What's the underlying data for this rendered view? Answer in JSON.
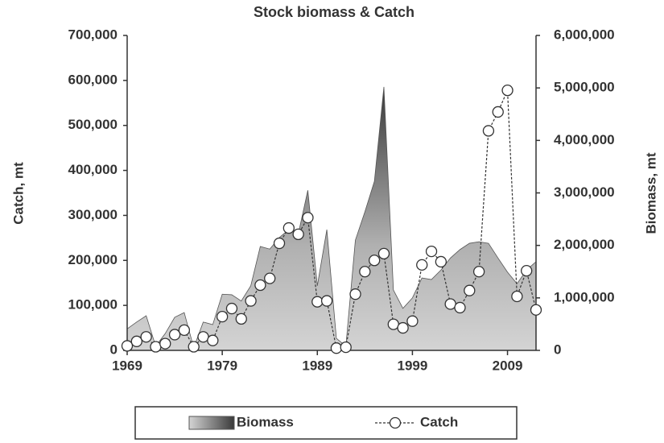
{
  "chart_data": {
    "type": "area_line",
    "title": "Stock biomass & Catch",
    "ylabel": "Catch, mt",
    "y2label": "Biomass, mt",
    "x": [
      1969,
      1970,
      1971,
      1972,
      1973,
      1974,
      1975,
      1976,
      1977,
      1978,
      1979,
      1980,
      1981,
      1982,
      1983,
      1984,
      1985,
      1986,
      1987,
      1988,
      1989,
      1990,
      1991,
      1992,
      1993,
      1994,
      1995,
      1996,
      1997,
      1998,
      1999,
      2000,
      2001,
      2002,
      2003,
      2004,
      2005,
      2006,
      2007,
      2008,
      2009,
      2010,
      2011,
      2012
    ],
    "series": [
      {
        "name": "Biomass",
        "color": "#8c8c8c",
        "axis": "y2",
        "values": [
          410000,
          540000,
          660000,
          80000,
          320000,
          630000,
          720000,
          50000,
          540000,
          490000,
          1070000,
          1060000,
          940000,
          1230000,
          1980000,
          1930000,
          2150000,
          2300000,
          2220000,
          3050000,
          1230000,
          2300000,
          230000,
          80000,
          2100000,
          2640000,
          3220000,
          5020000,
          1150000,
          800000,
          1000000,
          1380000,
          1350000,
          1530000,
          1760000,
          1920000,
          2040000,
          2070000,
          2040000,
          1760000,
          1490000,
          1270000,
          1530000,
          1690000
        ]
      },
      {
        "name": "Catch",
        "color": "#333333",
        "axis": "y",
        "values": [
          10000,
          20000,
          30000,
          8000,
          15000,
          35000,
          45000,
          8000,
          30000,
          22000,
          75000,
          93000,
          70000,
          110000,
          145000,
          160000,
          238000,
          272000,
          258000,
          295000,
          108000,
          110000,
          5000,
          7000,
          125000,
          175000,
          200000,
          215000,
          58000,
          50000,
          65000,
          190000,
          220000,
          197000,
          103000,
          95000,
          133000,
          175000,
          488000,
          530000,
          578000,
          120000,
          177000,
          90000
        ]
      }
    ],
    "xlim": [
      1969,
      2012
    ],
    "xticks": [
      1969,
      1979,
      1989,
      1999,
      2009
    ],
    "ylim": [
      0,
      700000
    ],
    "yticks": [
      0,
      {
        "value": 100000,
        "label": "100,000"
      },
      {
        "value": 200000,
        "label": "200,000"
      },
      {
        "value": 300000,
        "label": "300,000"
      },
      {
        "value": 400000,
        "label": "400,000"
      },
      {
        "value": 500000,
        "label": "500,000"
      },
      {
        "value": 600000,
        "label": "600,000"
      },
      {
        "value": 700000,
        "label": "700,000"
      }
    ],
    "y2lim": [
      0,
      6000000
    ],
    "y2ticks": [
      0,
      {
        "value": 1000000,
        "label": "1,000,000"
      },
      {
        "value": 2000000,
        "label": "2,000,000"
      },
      {
        "value": 3000000,
        "label": "3,000,000"
      },
      {
        "value": 4000000,
        "label": "4,000,000"
      },
      {
        "value": 5000000,
        "label": "5,000,000"
      },
      {
        "value": 6000000,
        "label": "6,000,000"
      }
    ],
    "legend": "bottom"
  }
}
